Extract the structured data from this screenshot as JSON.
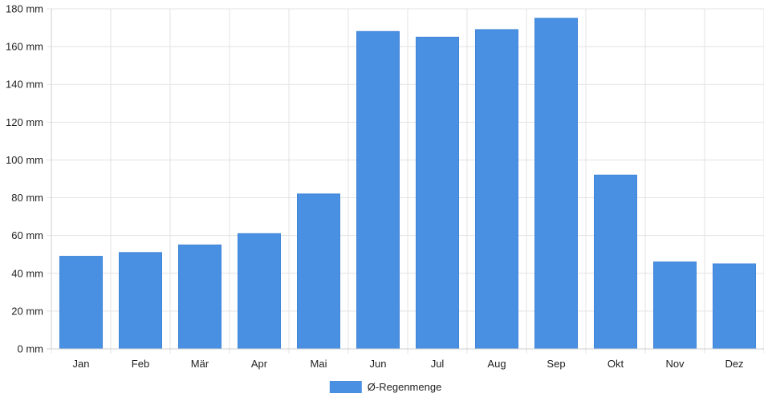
{
  "chart_data": {
    "type": "bar",
    "categories": [
      "Jan",
      "Feb",
      "Mär",
      "Apr",
      "Mai",
      "Jun",
      "Jul",
      "Aug",
      "Sep",
      "Okt",
      "Nov",
      "Dez"
    ],
    "series": [
      {
        "name": "Ø-Regenmenge",
        "color": "#4a90e2",
        "values": [
          49,
          51,
          55,
          61,
          82,
          168,
          165,
          169,
          175,
          92,
          46,
          45
        ]
      }
    ],
    "ylim": [
      0,
      180
    ],
    "yticks": [
      0,
      20,
      40,
      60,
      80,
      100,
      120,
      140,
      160,
      180
    ],
    "ytick_labels": [
      "0 mm",
      "20 mm",
      "40 mm",
      "60 mm",
      "80 mm",
      "100 mm",
      "120 mm",
      "140 mm",
      "160 mm",
      "180 mm"
    ],
    "grid": true,
    "legend_position": "bottom-center",
    "title": "",
    "xlabel": "",
    "ylabel": ""
  }
}
